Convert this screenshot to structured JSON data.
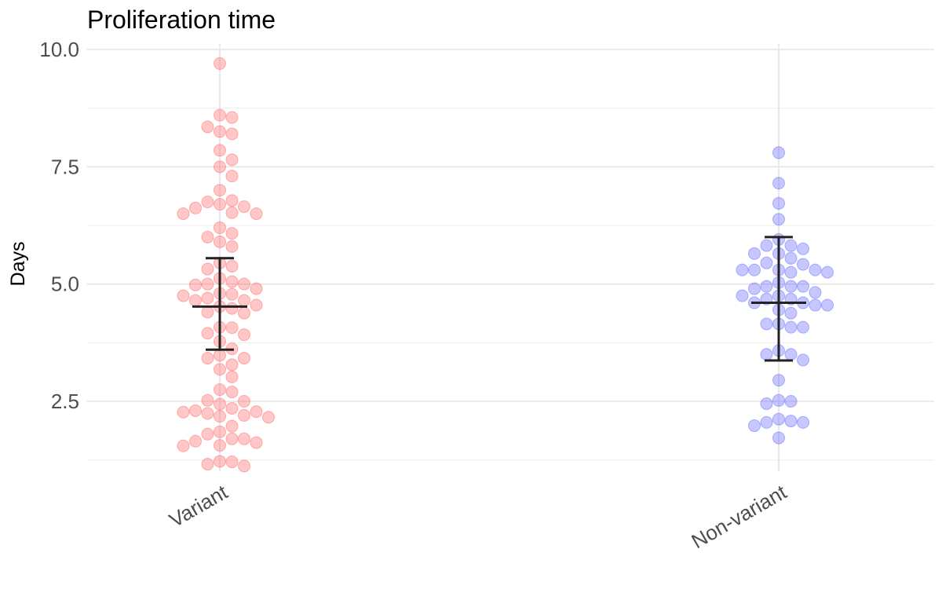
{
  "chart_data": {
    "type": "scatter",
    "title": "Proliferation time",
    "xlabel": "",
    "ylabel": "Days",
    "ylim": [
      1.0,
      10.1
    ],
    "yticks": [
      "2.5",
      "5.0",
      "7.5",
      "10.0"
    ],
    "grid": true,
    "legend": "none",
    "categories": [
      "Variant",
      "Non-variant"
    ],
    "series": [
      {
        "category": "Variant",
        "color": "#ff6b6b",
        "mean": 4.52,
        "error_low": 3.6,
        "error_high": 5.55,
        "values": [
          9.7,
          8.6,
          8.55,
          8.35,
          8.25,
          8.2,
          7.85,
          7.65,
          7.5,
          7.3,
          7.0,
          6.78,
          6.75,
          6.7,
          6.65,
          6.62,
          6.52,
          6.5,
          6.5,
          6.2,
          6.08,
          6.0,
          5.9,
          5.8,
          5.45,
          5.38,
          5.32,
          5.12,
          5.05,
          5.0,
          5.0,
          4.98,
          4.9,
          4.8,
          4.78,
          4.75,
          4.7,
          4.65,
          4.65,
          4.55,
          4.52,
          4.48,
          4.4,
          4.38,
          4.08,
          4.07,
          3.95,
          3.92,
          3.78,
          3.62,
          3.48,
          3.42,
          3.42,
          3.28,
          3.18,
          3.02,
          2.75,
          2.7,
          2.52,
          2.5,
          2.44,
          2.35,
          2.3,
          2.28,
          2.27,
          2.24,
          2.2,
          2.18,
          2.16,
          1.97,
          1.85,
          1.8,
          1.7,
          1.7,
          1.65,
          1.62,
          1.56,
          1.55,
          1.22,
          1.21,
          1.16,
          1.12
        ]
      },
      {
        "category": "Non-variant",
        "color": "#6b6bff",
        "mean": 4.6,
        "error_low": 3.37,
        "error_high": 6.0,
        "values": [
          7.8,
          7.15,
          6.72,
          6.38,
          5.95,
          5.82,
          5.82,
          5.75,
          5.65,
          5.65,
          5.55,
          5.45,
          5.42,
          5.3,
          5.3,
          5.3,
          5.3,
          5.25,
          5.25,
          5.03,
          4.95,
          4.95,
          4.95,
          4.9,
          4.82,
          4.75,
          4.75,
          4.68,
          4.68,
          4.6,
          4.6,
          4.55,
          4.55,
          4.45,
          4.38,
          4.15,
          4.15,
          4.08,
          4.08,
          3.58,
          3.5,
          3.5,
          3.38,
          2.95,
          2.52,
          2.5,
          2.45,
          2.12,
          2.08,
          2.05,
          2.05,
          1.98,
          1.72
        ]
      }
    ]
  }
}
